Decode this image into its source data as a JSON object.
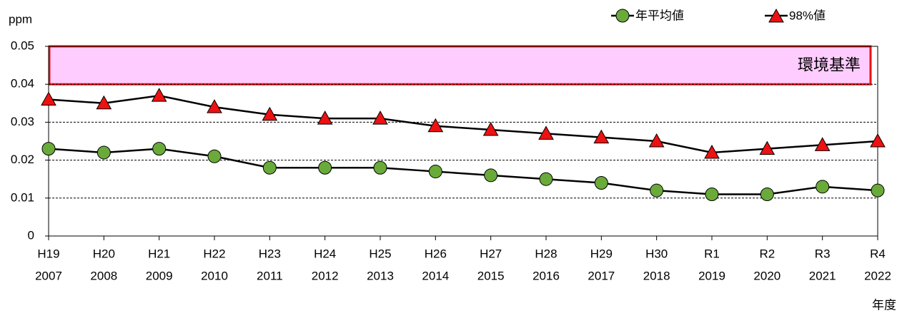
{
  "chart_data": {
    "type": "line",
    "y_label": "ppm",
    "x_label": "年度",
    "categories": [
      [
        "H19",
        "2007"
      ],
      [
        "H20",
        "2008"
      ],
      [
        "H21",
        "2009"
      ],
      [
        "H22",
        "2010"
      ],
      [
        "H23",
        "2011"
      ],
      [
        "H24",
        "2012"
      ],
      [
        "H25",
        "2013"
      ],
      [
        "H26",
        "2014"
      ],
      [
        "H27",
        "2015"
      ],
      [
        "H28",
        "2016"
      ],
      [
        "H29",
        "2017"
      ],
      [
        "H30",
        "2018"
      ],
      [
        "R1",
        "2019"
      ],
      [
        "R2",
        "2020"
      ],
      [
        "R3",
        "2021"
      ],
      [
        "R4",
        "2022"
      ]
    ],
    "series": [
      {
        "name": "年平均値",
        "color": "#6aaa3a",
        "marker": "circle",
        "values": [
          0.023,
          0.022,
          0.023,
          0.021,
          0.018,
          0.018,
          0.018,
          0.017,
          0.016,
          0.015,
          0.014,
          0.012,
          0.011,
          0.011,
          0.013,
          0.012
        ]
      },
      {
        "name": "98%値",
        "color": "#ee1111",
        "marker": "triangle",
        "values": [
          0.036,
          0.035,
          0.037,
          0.034,
          0.032,
          0.031,
          0.031,
          0.029,
          0.028,
          0.027,
          0.026,
          0.025,
          0.022,
          0.023,
          0.024,
          0.025
        ]
      }
    ],
    "line_color": "#000000",
    "ylim": [
      0,
      0.05
    ],
    "yticks": [
      0,
      0.01,
      0.02,
      0.03,
      0.04,
      0.05
    ],
    "grid": true,
    "legend": "top-right",
    "standard": {
      "label": "環境基準",
      "range": [
        0.04,
        0.05
      ],
      "fill": "#ffccff",
      "border": "#ee1111"
    }
  }
}
